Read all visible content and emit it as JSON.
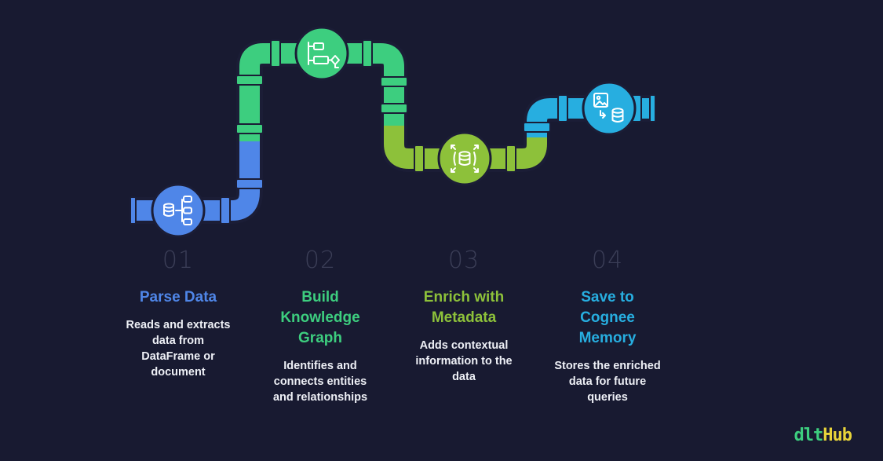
{
  "colors": {
    "background": "#181a31",
    "step1": "#4f86e8",
    "step2": "#3dce7f",
    "step3": "#8dc13a",
    "step4": "#27aee0",
    "logo_green": "#3dce7f",
    "logo_yellow": "#e8d43a"
  },
  "steps": [
    {
      "number": "01",
      "title": "Parse Data",
      "description": "Reads and extracts\ndata from\nDataFrame or\ndocument",
      "icon": "database-hierarchy-icon"
    },
    {
      "number": "02",
      "title": "Build\nKnowledge\nGraph",
      "description": "Identifies and\nconnects entities\nand relationships",
      "icon": "flowchart-icon"
    },
    {
      "number": "03",
      "title": "Enrich with\nMetadata",
      "description": "Adds contextual\ninformation to the\ndata",
      "icon": "database-expand-icon"
    },
    {
      "number": "04",
      "title": "Save to\nCognee\nMemory",
      "description": "Stores the enriched\ndata for future\nqueries",
      "icon": "image-to-database-icon"
    }
  ],
  "logo": {
    "part1": "dlt",
    "part2": "Hub"
  }
}
